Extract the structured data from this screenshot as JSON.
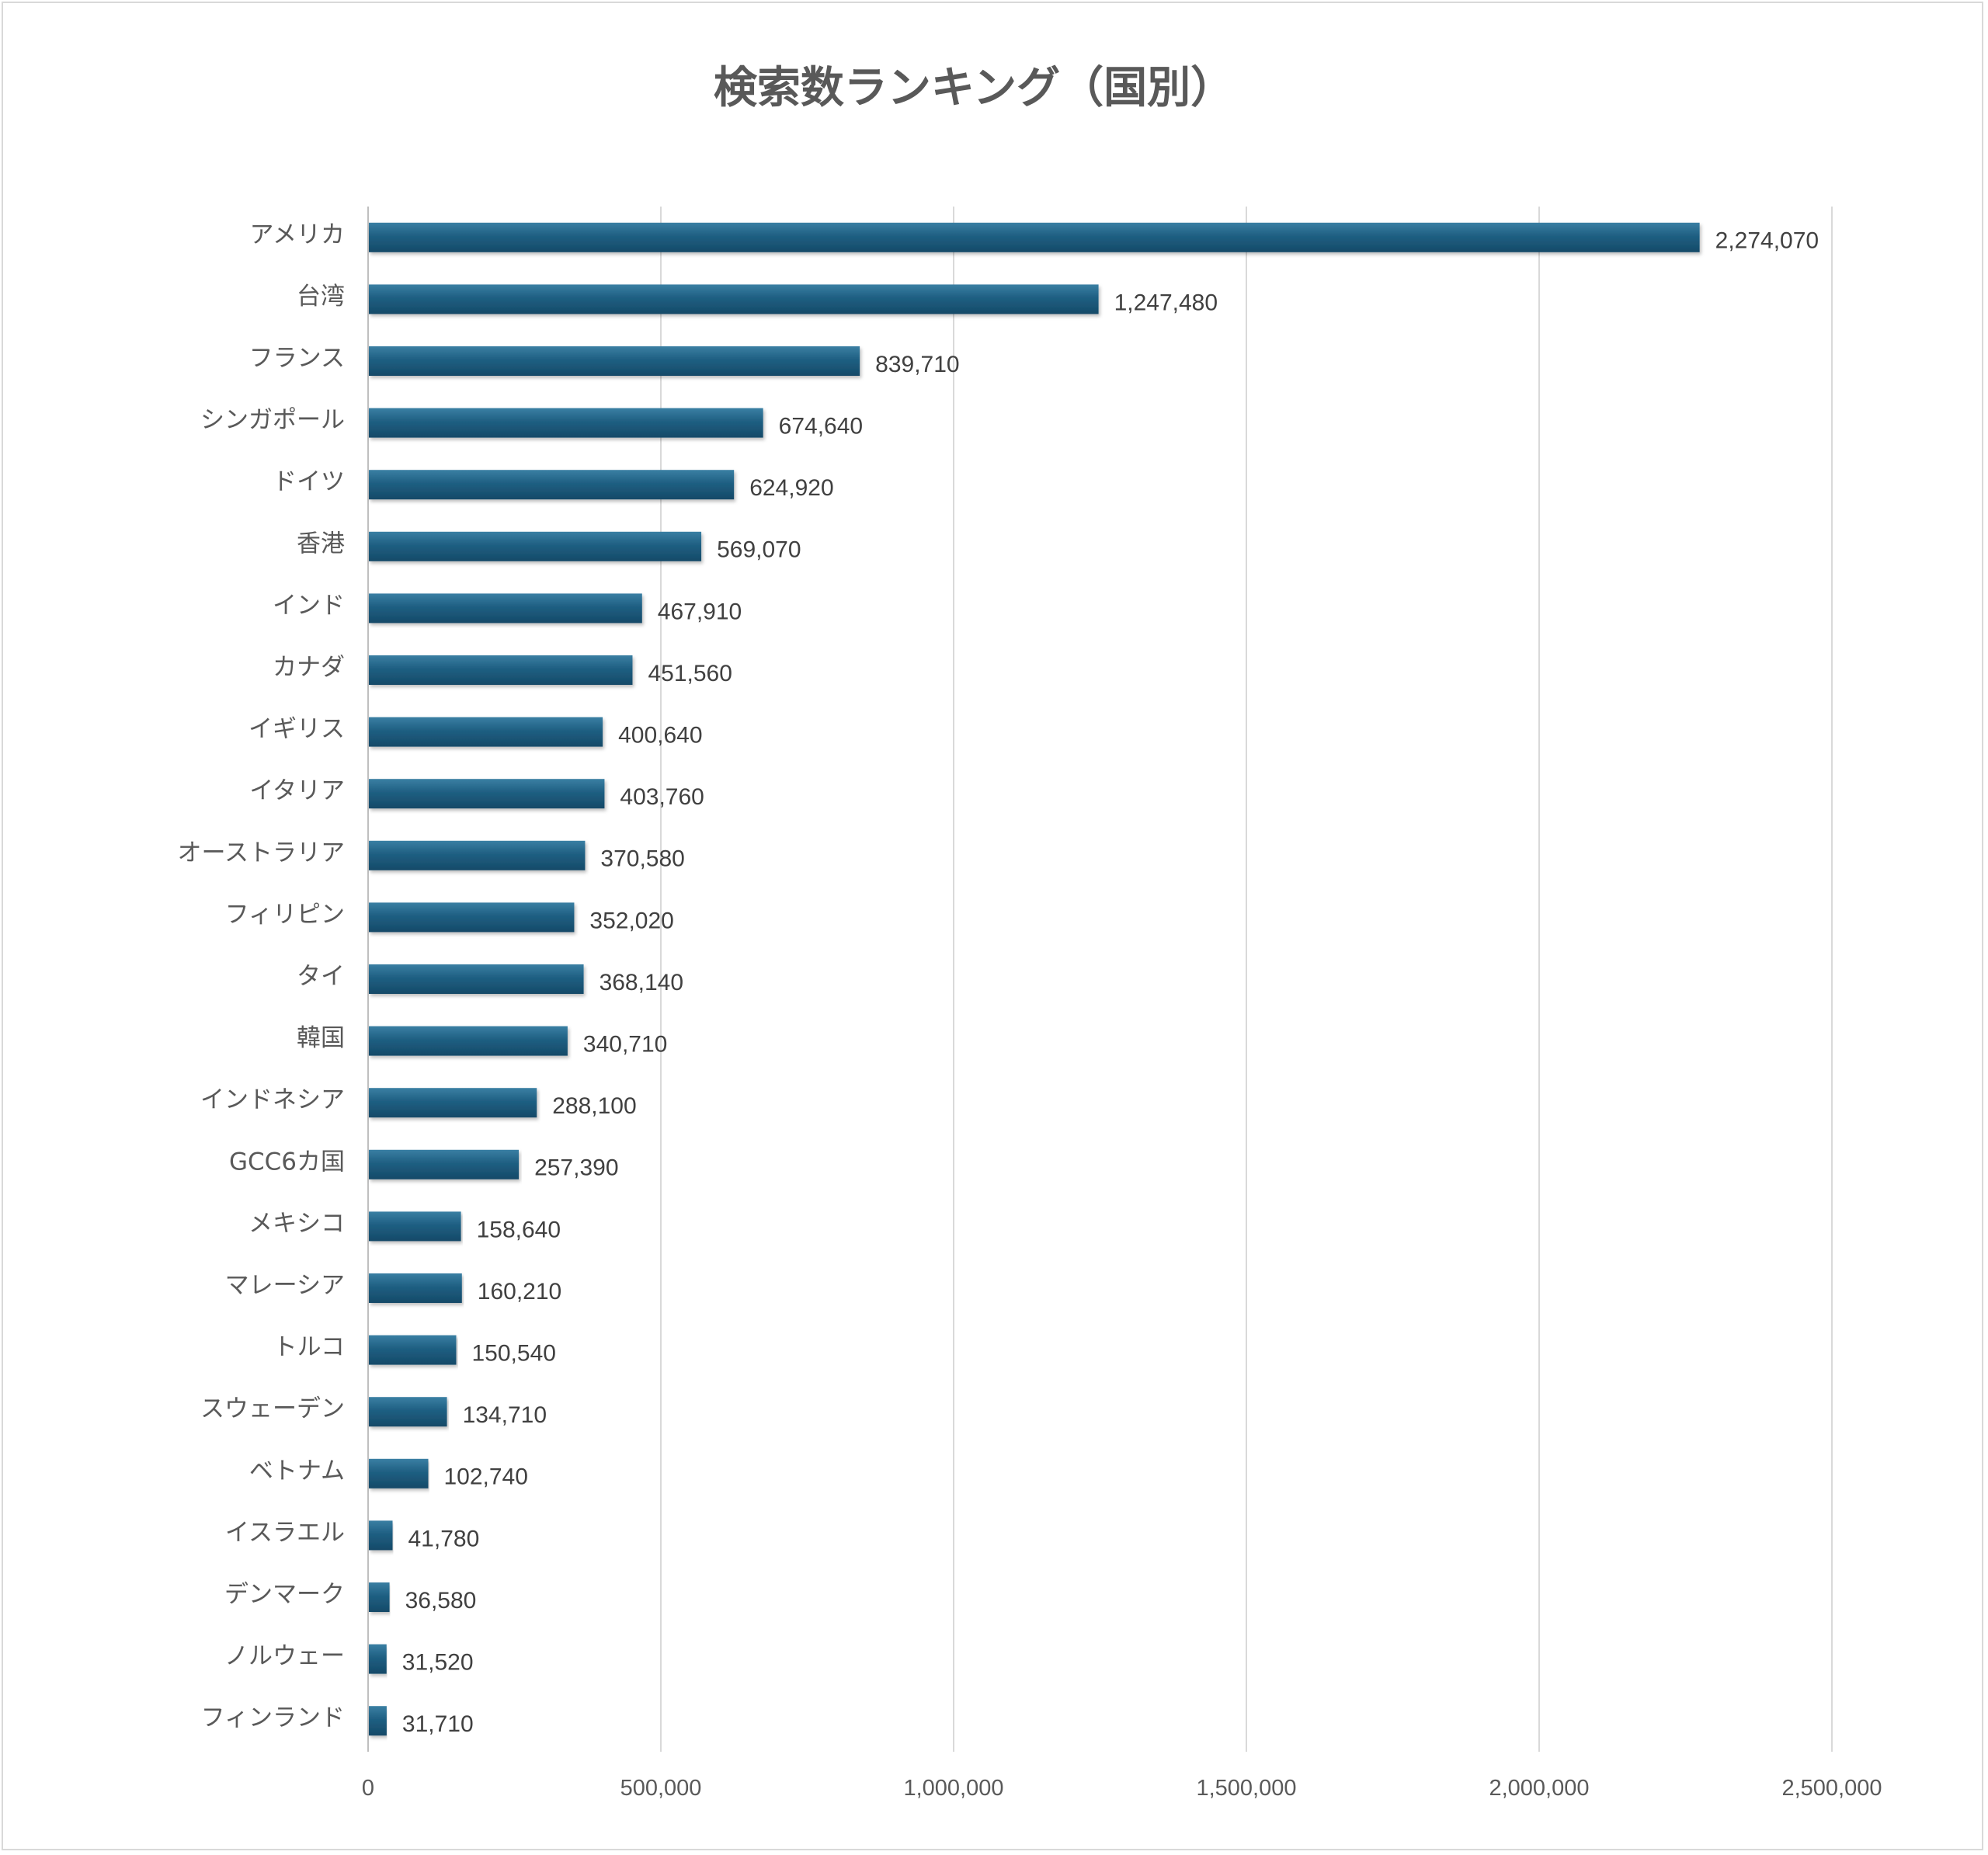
{
  "chart_data": {
    "type": "bar",
    "orientation": "horizontal",
    "title": "検索数ランキング（国別）",
    "xlabel": "",
    "ylabel": "",
    "xlim": [
      0,
      2500000
    ],
    "x_ticks": [
      0,
      500000,
      1000000,
      1500000,
      2000000,
      2500000
    ],
    "x_tick_labels": [
      "0",
      "500,000",
      "1,000,000",
      "1,500,000",
      "2,000,000",
      "2,500,000"
    ],
    "grid": "vertical",
    "legend": "none",
    "bar_color": "#1f5f82",
    "categories": [
      "アメリカ",
      "台湾",
      "フランス",
      "シンガポール",
      "ドイツ",
      "香港",
      "インド",
      "カナダ",
      "イギリス",
      "イタリア",
      "オーストラリア",
      "フィリピン",
      "タイ",
      "韓国",
      "インドネシア",
      "GCC6カ国",
      "メキシコ",
      "マレーシア",
      "トルコ",
      "スウェーデン",
      "ベトナム",
      "イスラエル",
      "デンマーク",
      "ノルウェー",
      "フィンランド"
    ],
    "values": [
      2274070,
      1247480,
      839710,
      674640,
      624920,
      569070,
      467910,
      451560,
      400640,
      403760,
      370580,
      352020,
      368140,
      340710,
      288100,
      257390,
      158640,
      160210,
      150540,
      134710,
      102740,
      41780,
      36580,
      31520,
      31710
    ],
    "value_labels": [
      "2,274,070",
      "1,247,480",
      "839,710",
      "674,640",
      "624,920",
      "569,070",
      "467,910",
      "451,560",
      "400,640",
      "403,760",
      "370,580",
      "352,020",
      "368,140",
      "340,710",
      "288,100",
      "257,390",
      "158,640",
      "160,210",
      "150,540",
      "134,710",
      "102,740",
      "41,780",
      "36,580",
      "31,520",
      "31,710"
    ]
  }
}
